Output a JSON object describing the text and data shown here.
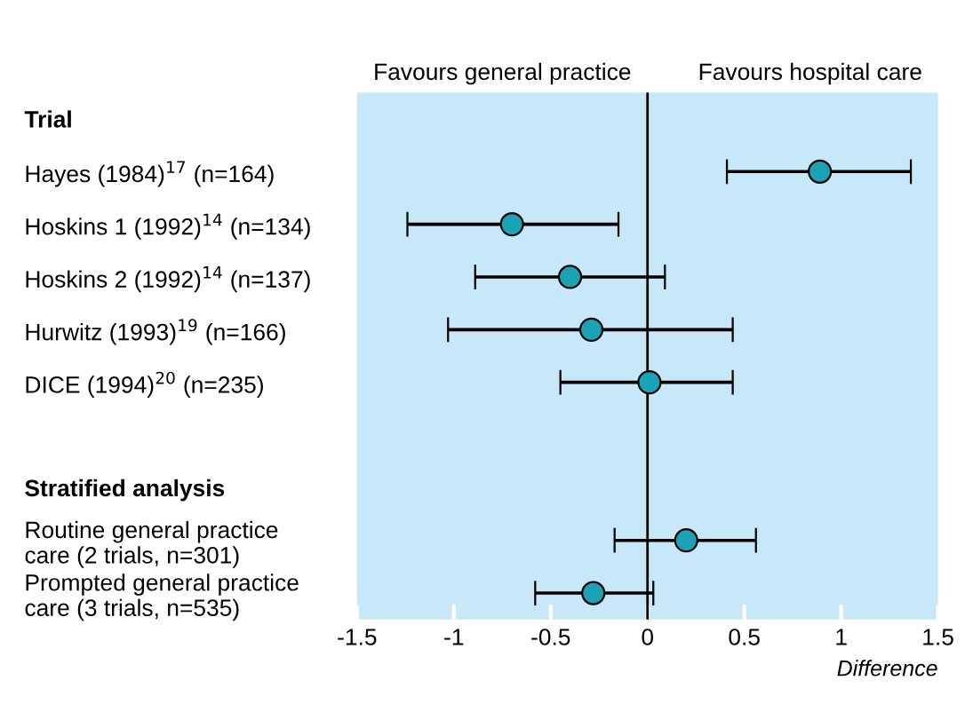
{
  "chart_data": {
    "type": "scatter",
    "orientation": "horizontal",
    "xlabel": "Difference",
    "categories": [
      "Trial",
      "Hayes (1984)$^{17}$ (n=164)",
      "Hoskins 1 (1992)$^{14}$ (n=134)",
      "Hoskins 2 (1992)$^{14}$ (n=137)",
      "Hurwitz (1993)$^{19}$ (n=166)",
      "DICE (1994)$^{20}$ (n=235)",
      null,
      "Stratified analysis",
      "Routine general practice\ncare (2 trials, n=301)",
      "Prompted general practice\ncare (3 trials, n=535)"
    ],
    "color": "#1ba3b5",
    "values": [
      null,
      0.89,
      -0.7,
      -0.4,
      -0.29,
      0.01,
      null,
      null,
      0.2,
      -0.28
    ],
    "errors": [
      null,
      [
        0.41,
        1.36
      ],
      [
        -1.24,
        -0.15
      ],
      [
        -0.89,
        0.09
      ],
      [
        -1.03,
        0.44
      ],
      [
        -0.45,
        0.44
      ],
      null,
      null,
      [
        -0.17,
        0.56
      ],
      [
        -0.58,
        0.03
      ]
    ],
    "xlim": [
      -1.5,
      1.5
    ],
    "xticks": [
      {
        "value": -1.5,
        "label": "-1.5"
      },
      {
        "value": -1,
        "label": "-1"
      },
      {
        "value": -0.5,
        "label": "-0.5"
      },
      0,
      0.5,
      1,
      1.5
    ],
    "ref_lines": [
      {
        "axis": "x",
        "value": 0,
        "color": "#000000"
      }
    ],
    "annotations": [
      "Favours general practice",
      "Favours hospital care"
    ],
    "marker": "circle",
    "grid": false
  }
}
